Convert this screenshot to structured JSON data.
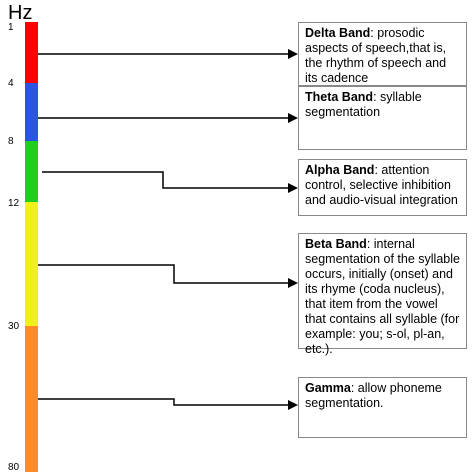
{
  "unit_label": "Hz",
  "ticks": [
    "1",
    "4",
    "8",
    "12",
    "30",
    "80"
  ],
  "colors": {
    "delta": "#ff0000",
    "theta": "#2b55e0",
    "alpha": "#22cc22",
    "beta": "#f0f01e",
    "gamma": "#ff8a2a",
    "arrow": "#000000",
    "box_border": "#888888"
  },
  "bands": [
    {
      "key": "delta",
      "name": "Delta Band",
      "description": ": prosodic aspects  of  speech,that is, the rhythm of speech and its cadence"
    },
    {
      "key": "theta",
      "name": "Theta Band",
      "description": ": syllable segmentation"
    },
    {
      "key": "alpha",
      "name": "Alpha Band",
      "description": ":  attention control, selective inhibition and audio-visual integration"
    },
    {
      "key": "beta",
      "name": "Beta Band",
      "description": ":  internal segmentation of the syllable occurs, initially (onset) and its rhyme (coda nucleus), that item from the vowel that contains all syllable (for example: you; s-ol, pl-an, etc.)."
    },
    {
      "key": "gamma",
      "name": "Gamma",
      "description": ":  allow  phoneme segmentation."
    }
  ]
}
